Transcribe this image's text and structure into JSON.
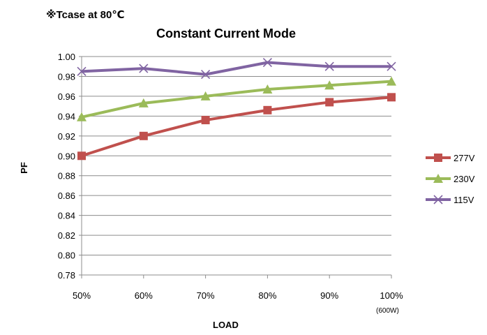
{
  "note": "※Tcase at 80℃",
  "chart_data": {
    "type": "line",
    "title": "Constant Current Mode",
    "xlabel": "LOAD",
    "ylabel": "PF",
    "categories": [
      "50%",
      "60%",
      "70%",
      "80%",
      "90%",
      "100%"
    ],
    "category_sublabel": "(600W)",
    "ylim": [
      0.78,
      1.0
    ],
    "yticks": [
      "0.78",
      "0.80",
      "0.82",
      "0.84",
      "0.86",
      "0.88",
      "0.90",
      "0.92",
      "0.94",
      "0.96",
      "0.98",
      "1.00"
    ],
    "grid": true,
    "legend": "right",
    "series": [
      {
        "name": "277V",
        "color": "#c0504d",
        "marker": "square",
        "values": [
          0.9,
          0.92,
          0.936,
          0.946,
          0.954,
          0.959
        ]
      },
      {
        "name": "230V",
        "color": "#9bbb59",
        "marker": "triangle",
        "values": [
          0.939,
          0.953,
          0.96,
          0.967,
          0.971,
          0.975
        ]
      },
      {
        "name": "115V",
        "color": "#8064a2",
        "marker": "x",
        "values": [
          0.985,
          0.988,
          0.982,
          0.994,
          0.99,
          0.99
        ]
      }
    ]
  }
}
